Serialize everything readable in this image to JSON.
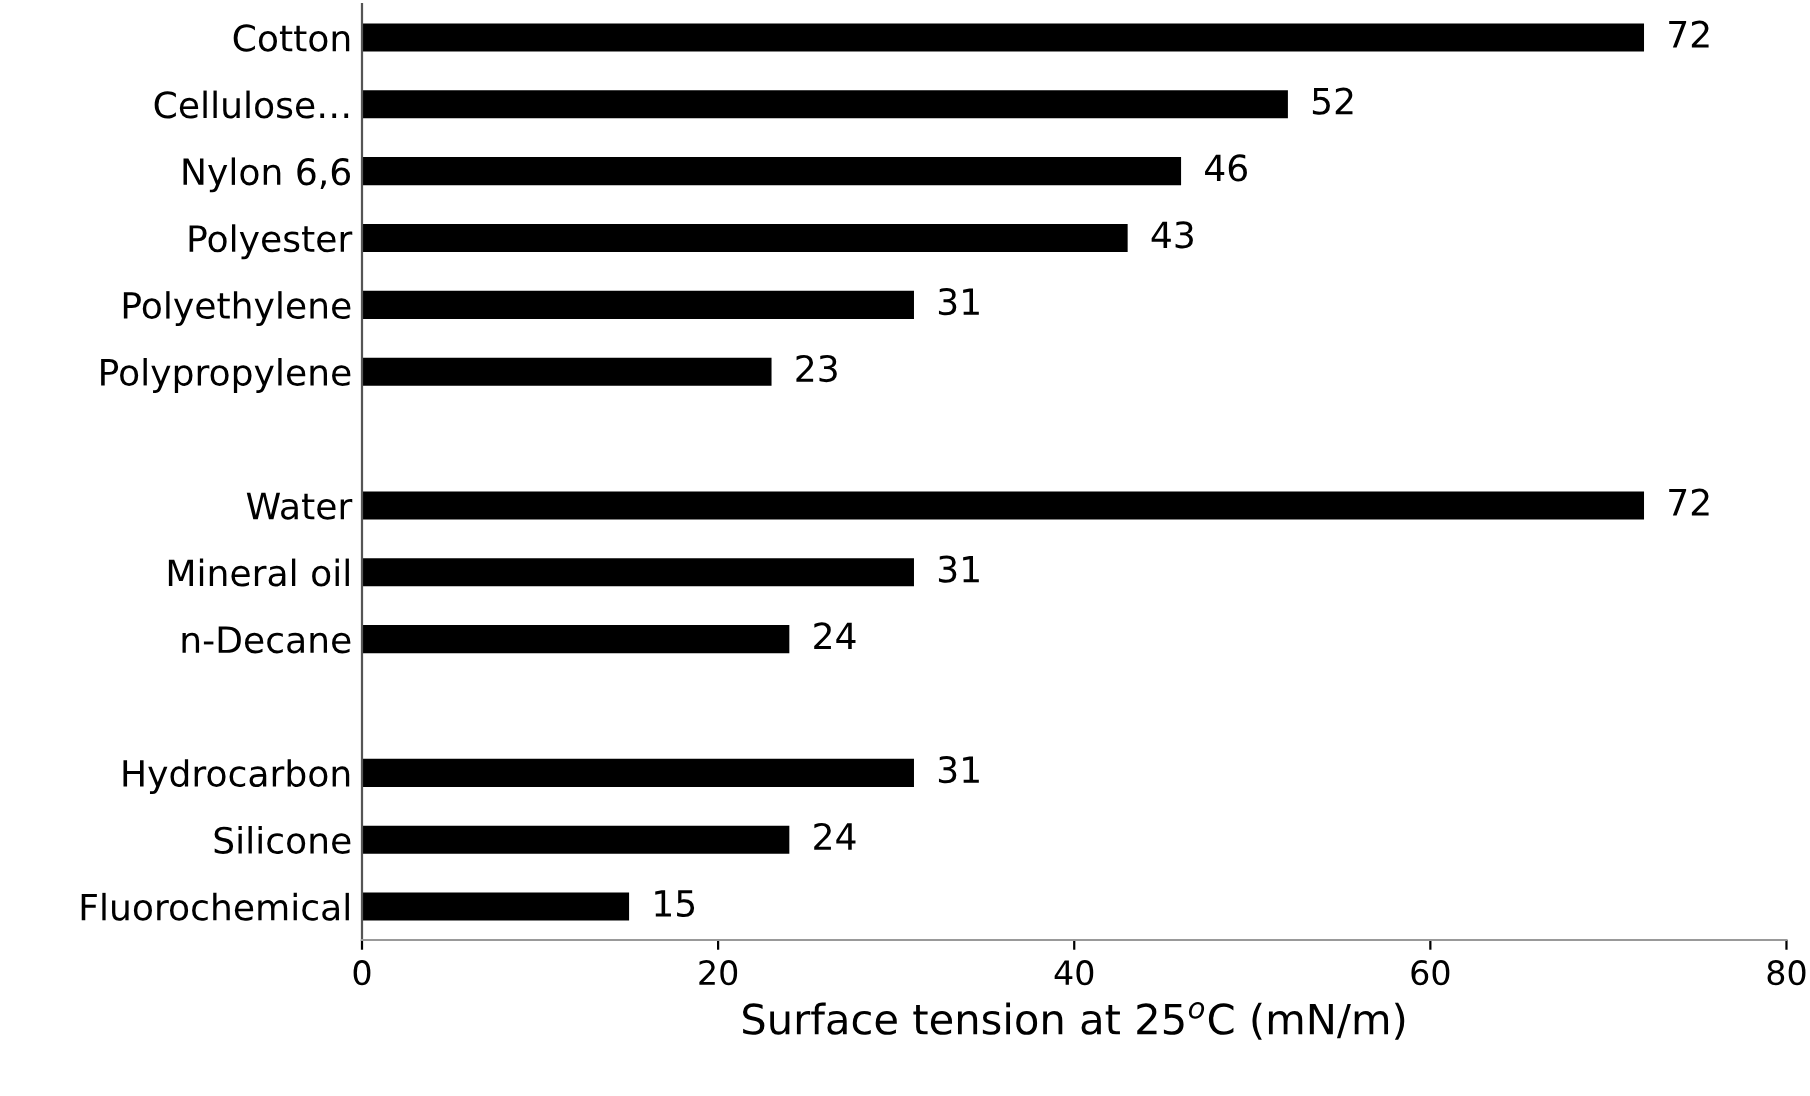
{
  "chart_data": {
    "type": "bar",
    "orientation": "horizontal",
    "xlabel": "Surface tension at 25$^{o}$C (mN/m)",
    "categories": [
      "Cotton",
      "Cellulose…",
      "Nylon 6,6",
      "Polyester",
      "Polyethylene",
      "Polypropylene",
      null,
      "Water",
      "Mineral oil",
      "n-Decane",
      null,
      "Hydrocarbon",
      "Silicone",
      "Fluorochemical"
    ],
    "values": [
      72,
      52,
      46,
      43,
      31,
      23,
      null,
      72,
      31,
      24,
      null,
      31,
      24,
      15
    ],
    "color": "#000000",
    "xlim": [
      0,
      80
    ],
    "xticks": [
      0,
      20,
      40,
      60,
      80
    ],
    "data_labels": true,
    "grid": false,
    "legend": false
  }
}
